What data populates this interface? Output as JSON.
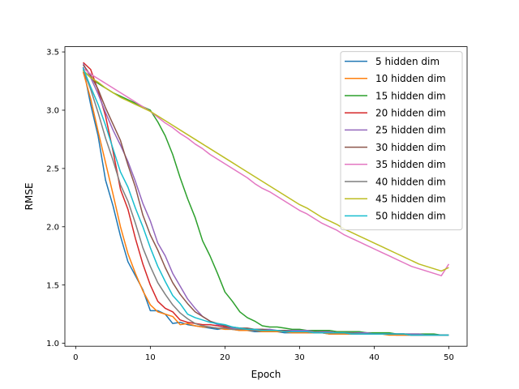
{
  "chart_data": {
    "type": "line",
    "title": "",
    "xlabel": "Epoch",
    "ylabel": "RMSE",
    "xlim": [
      -1.45,
      52.45
    ],
    "ylim": [
      0.975,
      3.545
    ],
    "xticks": [
      0,
      10,
      20,
      30,
      40,
      50
    ],
    "yticks": [
      1.0,
      1.5,
      2.0,
      2.5,
      3.0,
      3.5
    ],
    "ytick_labels": [
      "1.0",
      "1.5",
      "2.0",
      "2.5",
      "3.0",
      "3.5"
    ],
    "grid": false,
    "legend_position": "top-right",
    "x": [
      1,
      2,
      3,
      4,
      5,
      6,
      7,
      8,
      9,
      10,
      11,
      12,
      13,
      14,
      15,
      16,
      17,
      18,
      19,
      20,
      21,
      22,
      23,
      24,
      25,
      26,
      27,
      28,
      29,
      30,
      31,
      32,
      33,
      34,
      35,
      36,
      37,
      38,
      39,
      40,
      41,
      42,
      43,
      44,
      45,
      46,
      47,
      48,
      49,
      50
    ],
    "series": [
      {
        "name": "5 hidden dim",
        "color": "#1f77b4",
        "values": [
          3.37,
          3.05,
          2.78,
          2.4,
          2.18,
          1.92,
          1.7,
          1.58,
          1.46,
          1.28,
          1.28,
          1.25,
          1.17,
          1.18,
          1.16,
          1.15,
          1.14,
          1.13,
          1.12,
          1.13,
          1.12,
          1.11,
          1.11,
          1.1,
          1.1,
          1.1,
          1.1,
          1.09,
          1.09,
          1.09,
          1.09,
          1.09,
          1.09,
          1.08,
          1.08,
          1.08,
          1.08,
          1.08,
          1.08,
          1.08,
          1.08,
          1.08,
          1.07,
          1.07,
          1.07,
          1.07,
          1.07,
          1.07,
          1.07,
          1.07
        ]
      },
      {
        "name": "10 hidden dim",
        "color": "#ff7f0e",
        "values": [
          3.33,
          3.1,
          2.82,
          2.55,
          2.28,
          2.0,
          1.77,
          1.6,
          1.45,
          1.33,
          1.27,
          1.25,
          1.23,
          1.16,
          1.17,
          1.15,
          1.14,
          1.14,
          1.13,
          1.12,
          1.12,
          1.11,
          1.11,
          1.11,
          1.1,
          1.1,
          1.1,
          1.1,
          1.09,
          1.09,
          1.09,
          1.09,
          1.09,
          1.08,
          1.08,
          1.08,
          1.08,
          1.08,
          1.08,
          1.08,
          1.08,
          1.07,
          1.07,
          1.07,
          1.07,
          1.07,
          1.07,
          1.07,
          1.07,
          1.07
        ]
      },
      {
        "name": "15 hidden dim",
        "color": "#2ca02c",
        "values": [
          3.34,
          3.28,
          3.23,
          3.19,
          3.15,
          3.12,
          3.09,
          3.06,
          3.03,
          3.0,
          2.9,
          2.78,
          2.62,
          2.42,
          2.24,
          2.08,
          1.88,
          1.75,
          1.6,
          1.44,
          1.36,
          1.27,
          1.22,
          1.19,
          1.15,
          1.14,
          1.14,
          1.13,
          1.12,
          1.12,
          1.11,
          1.11,
          1.11,
          1.11,
          1.1,
          1.1,
          1.1,
          1.1,
          1.09,
          1.09,
          1.09,
          1.09,
          1.08,
          1.08,
          1.08,
          1.08,
          1.08,
          1.08,
          1.07,
          1.07
        ]
      },
      {
        "name": "20 hidden dim",
        "color": "#d62728",
        "values": [
          3.41,
          3.35,
          3.17,
          2.95,
          2.65,
          2.32,
          2.15,
          1.9,
          1.68,
          1.5,
          1.36,
          1.3,
          1.27,
          1.2,
          1.18,
          1.17,
          1.16,
          1.16,
          1.15,
          1.14,
          1.13,
          1.13,
          1.12,
          1.12,
          1.11,
          1.11,
          1.11,
          1.1,
          1.1,
          1.1,
          1.1,
          1.09,
          1.09,
          1.09,
          1.09,
          1.09,
          1.08,
          1.08,
          1.08,
          1.08,
          1.08,
          1.08,
          1.08,
          1.08,
          1.07,
          1.07,
          1.07,
          1.07,
          1.07,
          1.07
        ]
      },
      {
        "name": "25 hidden dim",
        "color": "#9467bd",
        "values": [
          3.4,
          3.28,
          3.14,
          2.98,
          2.83,
          2.7,
          2.56,
          2.39,
          2.2,
          2.05,
          1.86,
          1.75,
          1.6,
          1.49,
          1.38,
          1.3,
          1.23,
          1.19,
          1.16,
          1.15,
          1.13,
          1.13,
          1.12,
          1.12,
          1.12,
          1.12,
          1.11,
          1.11,
          1.11,
          1.11,
          1.11,
          1.1,
          1.1,
          1.1,
          1.09,
          1.09,
          1.09,
          1.09,
          1.09,
          1.08,
          1.08,
          1.08,
          1.08,
          1.08,
          1.08,
          1.08,
          1.07,
          1.07,
          1.07,
          1.07
        ]
      },
      {
        "name": "30 hidden dim",
        "color": "#8c564b",
        "values": [
          3.39,
          3.3,
          3.18,
          3.02,
          2.88,
          2.74,
          2.53,
          2.34,
          2.1,
          1.93,
          1.8,
          1.65,
          1.52,
          1.42,
          1.34,
          1.27,
          1.23,
          1.19,
          1.17,
          1.15,
          1.14,
          1.13,
          1.13,
          1.12,
          1.12,
          1.11,
          1.11,
          1.11,
          1.1,
          1.1,
          1.1,
          1.1,
          1.09,
          1.09,
          1.09,
          1.09,
          1.09,
          1.08,
          1.08,
          1.08,
          1.08,
          1.08,
          1.08,
          1.08,
          1.07,
          1.07,
          1.07,
          1.07,
          1.07,
          1.07
        ]
      },
      {
        "name": "35 hidden dim",
        "color": "#e377c2",
        "values": [
          3.36,
          3.31,
          3.27,
          3.23,
          3.19,
          3.15,
          3.11,
          3.07,
          3.03,
          2.99,
          2.94,
          2.89,
          2.85,
          2.8,
          2.76,
          2.71,
          2.67,
          2.62,
          2.58,
          2.54,
          2.5,
          2.46,
          2.42,
          2.37,
          2.33,
          2.3,
          2.26,
          2.22,
          2.18,
          2.14,
          2.11,
          2.07,
          2.03,
          2.0,
          1.97,
          1.93,
          1.9,
          1.87,
          1.84,
          1.81,
          1.78,
          1.75,
          1.72,
          1.69,
          1.66,
          1.64,
          1.62,
          1.6,
          1.58,
          1.68
        ]
      },
      {
        "name": "40 hidden dim",
        "color": "#7f7f7f",
        "values": [
          3.35,
          3.18,
          2.98,
          2.76,
          2.57,
          2.36,
          2.22,
          2.03,
          1.82,
          1.66,
          1.52,
          1.42,
          1.33,
          1.26,
          1.21,
          1.17,
          1.15,
          1.14,
          1.13,
          1.13,
          1.12,
          1.12,
          1.12,
          1.11,
          1.11,
          1.11,
          1.11,
          1.1,
          1.1,
          1.1,
          1.1,
          1.1,
          1.09,
          1.09,
          1.09,
          1.09,
          1.09,
          1.08,
          1.08,
          1.08,
          1.08,
          1.08,
          1.08,
          1.08,
          1.07,
          1.07,
          1.07,
          1.07,
          1.07,
          1.07
        ]
      },
      {
        "name": "45 hidden dim",
        "color": "#bcbd22",
        "values": [
          3.34,
          3.28,
          3.24,
          3.19,
          3.15,
          3.11,
          3.08,
          3.05,
          3.02,
          2.99,
          2.95,
          2.91,
          2.87,
          2.83,
          2.79,
          2.75,
          2.71,
          2.67,
          2.63,
          2.59,
          2.55,
          2.51,
          2.47,
          2.43,
          2.39,
          2.35,
          2.31,
          2.27,
          2.23,
          2.19,
          2.16,
          2.12,
          2.08,
          2.05,
          2.02,
          1.98,
          1.95,
          1.92,
          1.89,
          1.86,
          1.83,
          1.8,
          1.77,
          1.74,
          1.71,
          1.68,
          1.66,
          1.64,
          1.62,
          1.65
        ]
      },
      {
        "name": "50 hidden dim",
        "color": "#17becf",
        "values": [
          3.36,
          3.2,
          3.05,
          2.87,
          2.67,
          2.47,
          2.34,
          2.16,
          2.0,
          1.82,
          1.66,
          1.53,
          1.41,
          1.34,
          1.25,
          1.22,
          1.2,
          1.18,
          1.17,
          1.16,
          1.14,
          1.13,
          1.12,
          1.12,
          1.11,
          1.11,
          1.11,
          1.1,
          1.1,
          1.1,
          1.1,
          1.09,
          1.09,
          1.09,
          1.09,
          1.09,
          1.08,
          1.08,
          1.08,
          1.08,
          1.08,
          1.08,
          1.08,
          1.08,
          1.07,
          1.07,
          1.07,
          1.07,
          1.07,
          1.07
        ]
      }
    ]
  }
}
